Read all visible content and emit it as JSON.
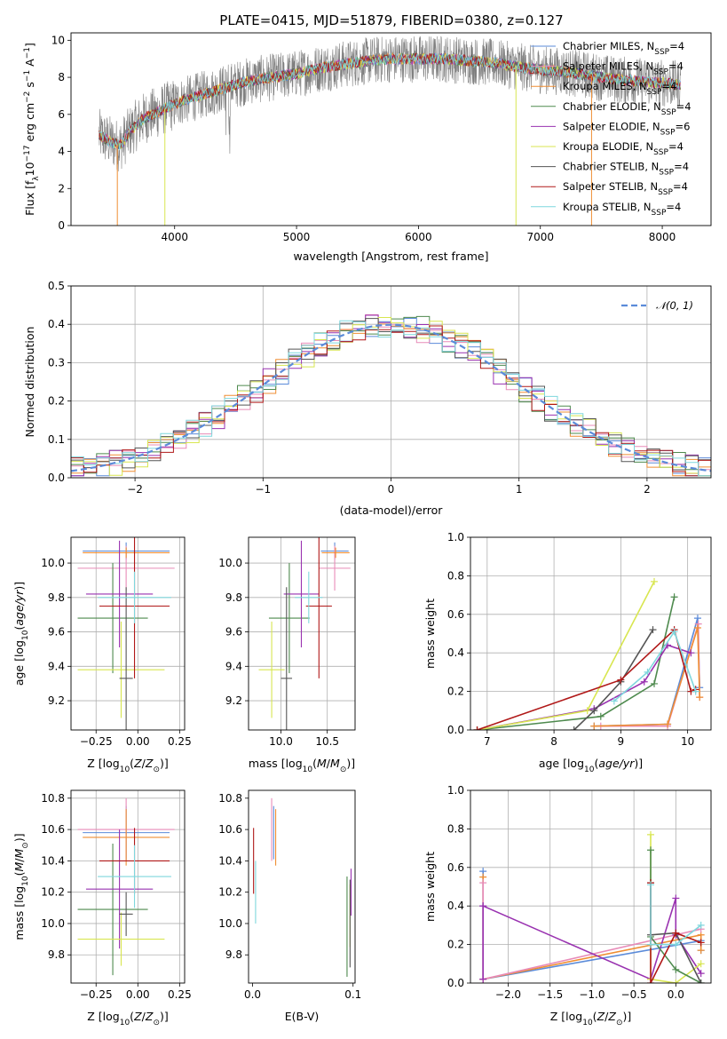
{
  "colors": {
    "chabrier_miles": "#5B8BD9",
    "salpeter_miles": "#E88BB8",
    "kroupa_miles": "#EF8E33",
    "chabrier_elodie": "#4E8A4E",
    "salpeter_elodie": "#9932B0",
    "kroupa_elodie": "#D8E650",
    "chabrier_stelib": "#555555",
    "salpeter_stelib": "#B01818",
    "kroupa_stelib": "#7FD7DD",
    "data": "#808080",
    "normal_curve": "#5B8BD9"
  },
  "chart_data": [
    {
      "id": "spectrum",
      "type": "line",
      "title": "PLATE=0415, MJD=51879, FIBERID=0380, z=0.127",
      "xlabel": "wavelength [Angstrom, rest frame]",
      "ylabel": "Flux [f_λ 10^-17 erg cm^-2 s^-1 A^-1]",
      "xlim": [
        3150,
        8400
      ],
      "ylim": [
        0,
        10.4
      ],
      "xticks": [
        4000,
        5000,
        6000,
        7000,
        8000
      ],
      "yticks": [
        0,
        2,
        4,
        6,
        8,
        10
      ],
      "legend_loc": "right",
      "series": [
        {
          "name": "Chabrier MILES, N_SSP=4",
          "color": "chabrier_miles"
        },
        {
          "name": "Salpeter MILES, N_SSP=4",
          "color": "salpeter_miles"
        },
        {
          "name": "Kroupa MILES, N_SSP=4",
          "color": "kroupa_miles"
        },
        {
          "name": "Chabrier ELODIE, N_SSP=4",
          "color": "chabrier_elodie"
        },
        {
          "name": "Salpeter ELODIE, N_SSP=6",
          "color": "salpeter_elodie"
        },
        {
          "name": "Kroupa ELODIE, N_SSP=4",
          "color": "kroupa_elodie"
        },
        {
          "name": "Chabrier STELIB, N_SSP=4",
          "color": "chabrier_stelib"
        },
        {
          "name": "Salpeter STELIB, N_SSP=4",
          "color": "salpeter_stelib"
        },
        {
          "name": "Kroupa STELIB, N_SSP=4",
          "color": "kroupa_stelib"
        }
      ],
      "continuum": [
        [
          3380,
          4.9
        ],
        [
          3450,
          4.6
        ],
        [
          3550,
          4.3
        ],
        [
          3650,
          5.2
        ],
        [
          3750,
          5.8
        ],
        [
          3850,
          6.1
        ],
        [
          3950,
          6.4
        ],
        [
          4050,
          6.7
        ],
        [
          4200,
          7.0
        ],
        [
          4400,
          7.4
        ],
        [
          4600,
          7.8
        ],
        [
          4800,
          8.0
        ],
        [
          5000,
          8.2
        ],
        [
          5200,
          8.5
        ],
        [
          5400,
          8.7
        ],
        [
          5600,
          8.9
        ],
        [
          5800,
          9.0
        ],
        [
          6000,
          9.0
        ],
        [
          6200,
          9.0
        ],
        [
          6400,
          8.9
        ],
        [
          6600,
          8.8
        ],
        [
          6800,
          8.6
        ],
        [
          7000,
          8.4
        ],
        [
          7200,
          8.3
        ],
        [
          7400,
          8.1
        ],
        [
          7600,
          7.9
        ],
        [
          7800,
          7.8
        ],
        [
          8000,
          7.7
        ],
        [
          8150,
          7.6
        ]
      ]
    },
    {
      "id": "residuals",
      "type": "line",
      "xlabel": "(data-model)/error",
      "ylabel": "Normed distribution",
      "xlim": [
        -2.5,
        2.5
      ],
      "ylim": [
        0,
        0.5
      ],
      "xticks": [
        -2,
        -1,
        0,
        1,
        2
      ],
      "xtick_labels": [
        "−2",
        "−1",
        "0",
        "1",
        "2"
      ],
      "yticks": [
        0.0,
        0.1,
        0.2,
        0.3,
        0.4,
        0.5
      ],
      "ytick_labels": [
        "0.0",
        "0.1",
        "0.2",
        "0.3",
        "0.4",
        "0.5"
      ],
      "grid": true,
      "legend": "𝒩(0, 1)",
      "legend_loc": "top-right",
      "bin_width": 0.1
    },
    {
      "id": "age_vs_Z",
      "type": "scatter",
      "xlabel": "Z [log10(Z/Z⊙)]",
      "ylabel": "age  [log10(age/yr)]",
      "xlim": [
        -0.4,
        0.28
      ],
      "ylim": [
        9.03,
        10.15
      ],
      "xticks": [
        -0.25,
        0.0,
        0.25
      ],
      "xtick_labels": [
        "−0.25",
        "0.00",
        "0.25"
      ],
      "yticks": [
        9.2,
        9.4,
        9.6,
        9.8,
        10.0
      ],
      "ytick_labels": [
        "9.2",
        "9.4",
        "9.6",
        "9.8",
        "10.0"
      ],
      "grid": true,
      "points": [
        {
          "c": "chabrier_miles",
          "x": -0.07,
          "xerr": 0.26,
          "y": 10.07,
          "yerr": 0.05
        },
        {
          "c": "salpeter_miles",
          "x": -0.07,
          "xerr": 0.29,
          "y": 9.97,
          "yerr": 0.13
        },
        {
          "c": "kroupa_miles",
          "x": -0.07,
          "xerr": 0.26,
          "y": 10.06,
          "yerr": 0.03
        },
        {
          "c": "chabrier_elodie",
          "x": -0.15,
          "xerr": 0.21,
          "y": 9.68,
          "yerr": 0.32
        },
        {
          "c": "salpeter_elodie",
          "x": -0.11,
          "xerr": 0.2,
          "y": 9.82,
          "yerr": 0.31
        },
        {
          "c": "kroupa_elodie",
          "x": -0.1,
          "xerr": 0.26,
          "y": 9.38,
          "yerr": 0.28
        },
        {
          "c": "chabrier_stelib",
          "x": -0.07,
          "xerr": 0.04,
          "y": 9.33,
          "yerr": 0.53
        },
        {
          "c": "salpeter_stelib",
          "x": -0.02,
          "xerr": 0.21,
          "y": 9.75,
          "yerr": 0.42
        },
        {
          "c": "kroupa_stelib",
          "x": -0.02,
          "xerr": 0.22,
          "y": 9.8,
          "yerr": 0.15
        }
      ]
    },
    {
      "id": "age_vs_mass",
      "type": "scatter",
      "xlabel": "mass [log10(M/M⊙)]",
      "xlim": [
        9.65,
        10.8
      ],
      "ylim": [
        9.03,
        10.15
      ],
      "xticks": [
        10.0,
        10.5
      ],
      "xtick_labels": [
        "10.0",
        "10.5"
      ],
      "yticks": [
        9.2,
        9.4,
        9.6,
        9.8,
        10.0
      ],
      "ytick_labels": [
        "9.2",
        "9.4",
        "9.6",
        "9.8",
        "10.0"
      ],
      "grid": true,
      "points": [
        {
          "c": "chabrier_miles",
          "x": 10.58,
          "xerr": 0.15,
          "y": 10.07,
          "yerr": 0.05
        },
        {
          "c": "salpeter_miles",
          "x": 10.58,
          "xerr": 0.17,
          "y": 9.97,
          "yerr": 0.13
        },
        {
          "c": "kroupa_miles",
          "x": 10.59,
          "xerr": 0.15,
          "y": 10.06,
          "yerr": 0.03
        },
        {
          "c": "chabrier_elodie",
          "x": 10.09,
          "xerr": 0.22,
          "y": 9.68,
          "yerr": 0.32
        },
        {
          "c": "salpeter_elodie",
          "x": 10.22,
          "xerr": 0.19,
          "y": 9.82,
          "yerr": 0.31
        },
        {
          "c": "kroupa_elodie",
          "x": 9.9,
          "xerr": 0.14,
          "y": 9.38,
          "yerr": 0.28
        },
        {
          "c": "chabrier_stelib",
          "x": 10.06,
          "xerr": 0.06,
          "y": 9.33,
          "yerr": 0.53
        },
        {
          "c": "salpeter_stelib",
          "x": 10.41,
          "xerr": 0.14,
          "y": 9.75,
          "yerr": 0.42
        },
        {
          "c": "kroupa_stelib",
          "x": 10.3,
          "xerr": 0.15,
          "y": 9.8,
          "yerr": 0.15
        }
      ]
    },
    {
      "id": "weight_vs_age",
      "type": "line",
      "xlabel": "age  [log10(age/yr)]",
      "ylabel": "mass weight",
      "xlim": [
        6.75,
        10.35
      ],
      "ylim": [
        0,
        1.0
      ],
      "xticks": [
        7,
        8,
        9,
        10
      ],
      "yticks": [
        0.0,
        0.2,
        0.4,
        0.6,
        0.8,
        1.0
      ],
      "ytick_labels": [
        "0.0",
        "0.2",
        "0.4",
        "0.6",
        "0.8",
        "1.0"
      ],
      "grid": true,
      "series": [
        {
          "c": "chabrier_miles",
          "pts": [
            [
              8.6,
              0.02
            ],
            [
              9.7,
              0.03
            ],
            [
              10.15,
              0.58
            ],
            [
              10.18,
              0.22
            ]
          ]
        },
        {
          "c": "salpeter_miles",
          "pts": [
            [
              8.7,
              0.02
            ],
            [
              9.7,
              0.02
            ],
            [
              10.16,
              0.55
            ],
            [
              10.18,
              0.17
            ]
          ]
        },
        {
          "c": "kroupa_miles",
          "pts": [
            [
              8.6,
              0.02
            ],
            [
              9.7,
              0.03
            ],
            [
              10.15,
              0.53
            ],
            [
              10.18,
              0.17
            ]
          ]
        },
        {
          "c": "chabrier_elodie",
          "pts": [
            [
              6.85,
              0.0
            ],
            [
              8.7,
              0.07
            ],
            [
              9.5,
              0.24
            ],
            [
              9.8,
              0.69
            ]
          ]
        },
        {
          "c": "salpeter_elodie",
          "pts": [
            [
              6.85,
              0.0
            ],
            [
              8.6,
              0.11
            ],
            [
              9.35,
              0.25
            ],
            [
              9.7,
              0.44
            ],
            [
              10.05,
              0.4
            ]
          ]
        },
        {
          "c": "kroupa_elodie",
          "pts": [
            [
              6.85,
              0.0
            ],
            [
              8.5,
              0.1
            ],
            [
              9.5,
              0.77
            ]
          ]
        },
        {
          "c": "chabrier_stelib",
          "pts": [
            [
              8.3,
              0.0
            ],
            [
              8.6,
              0.1
            ],
            [
              9.0,
              0.25
            ],
            [
              9.48,
              0.52
            ]
          ]
        },
        {
          "c": "salpeter_stelib",
          "pts": [
            [
              6.85,
              0.0
            ],
            [
              9.0,
              0.26
            ],
            [
              9.8,
              0.52
            ],
            [
              10.05,
              0.2
            ],
            [
              10.12,
              0.21
            ]
          ]
        },
        {
          "c": "kroupa_stelib",
          "pts": [
            [
              8.9,
              0.15
            ],
            [
              9.4,
              0.3
            ],
            [
              9.8,
              0.51
            ],
            [
              10.12,
              0.2
            ]
          ]
        }
      ]
    },
    {
      "id": "mass_vs_Z",
      "type": "scatter",
      "xlabel": "Z [log10(Z/Z⊙)]",
      "ylabel": "mass [log10(M/M⊙)]",
      "xlim": [
        -0.4,
        0.28
      ],
      "ylim": [
        9.62,
        10.85
      ],
      "xticks": [
        -0.25,
        0.0,
        0.25
      ],
      "xtick_labels": [
        "−0.25",
        "0.00",
        "0.25"
      ],
      "yticks": [
        9.8,
        10.0,
        10.2,
        10.4,
        10.6,
        10.8
      ],
      "ytick_labels": [
        "9.8",
        "10.0",
        "10.2",
        "10.4",
        "10.6",
        "10.8"
      ],
      "grid": true,
      "points": [
        {
          "c": "chabrier_miles",
          "x": -0.07,
          "xerr": 0.26,
          "y": 10.58,
          "yerr": 0.17
        },
        {
          "c": "salpeter_miles",
          "x": -0.07,
          "xerr": 0.29,
          "y": 10.6,
          "yerr": 0.2
        },
        {
          "c": "kroupa_miles",
          "x": -0.07,
          "xerr": 0.26,
          "y": 10.55,
          "yerr": 0.18
        },
        {
          "c": "chabrier_elodie",
          "x": -0.15,
          "xerr": 0.21,
          "y": 10.09,
          "yerr": 0.42
        },
        {
          "c": "salpeter_elodie",
          "x": -0.11,
          "xerr": 0.2,
          "y": 10.22,
          "yerr": 0.38
        },
        {
          "c": "kroupa_elodie",
          "x": -0.1,
          "xerr": 0.26,
          "y": 9.9,
          "yerr": 0.17
        },
        {
          "c": "chabrier_stelib",
          "x": -0.07,
          "xerr": 0.04,
          "y": 10.06,
          "yerr": 0.14
        },
        {
          "c": "salpeter_stelib",
          "x": -0.02,
          "xerr": 0.21,
          "y": 10.4,
          "yerr": 0.21
        },
        {
          "c": "kroupa_stelib",
          "x": -0.02,
          "xerr": 0.22,
          "y": 10.3,
          "yerr": 0.2
        }
      ]
    },
    {
      "id": "mass_vs_ebv",
      "type": "scatter",
      "xlabel": "E(B-V)",
      "xlim": [
        -0.004,
        0.102
      ],
      "ylim": [
        9.62,
        10.85
      ],
      "xticks": [
        0.0,
        0.1
      ],
      "xtick_labels": [
        "0.0",
        "0.1"
      ],
      "yticks": [
        9.8,
        10.0,
        10.2,
        10.4,
        10.6,
        10.8
      ],
      "ytick_labels": [
        "9.8",
        "10.0",
        "10.2",
        "10.4",
        "10.6",
        "10.8"
      ],
      "grid": false,
      "points": [
        {
          "c": "chabrier_miles",
          "x": 0.021,
          "y": 10.58,
          "yerr": 0.17
        },
        {
          "c": "salpeter_miles",
          "x": 0.019,
          "y": 10.6,
          "yerr": 0.2
        },
        {
          "c": "kroupa_miles",
          "x": 0.023,
          "y": 10.55,
          "yerr": 0.18
        },
        {
          "c": "chabrier_elodie",
          "x": 0.094,
          "y": 9.98,
          "yerr": 0.32
        },
        {
          "c": "salpeter_elodie",
          "x": 0.098,
          "y": 10.2,
          "yerr": 0.15
        },
        {
          "c": "kroupa_elodie",
          "x": 0.097,
          "y": 10.05,
          "yerr": 0.2
        },
        {
          "c": "chabrier_stelib",
          "x": 0.097,
          "y": 10.0,
          "yerr": 0.28
        },
        {
          "c": "salpeter_stelib",
          "x": 0.001,
          "y": 10.4,
          "yerr": 0.21
        },
        {
          "c": "kroupa_stelib",
          "x": 0.003,
          "y": 10.2,
          "yerr": 0.2
        }
      ]
    },
    {
      "id": "weight_vs_Z",
      "type": "line",
      "xlabel": "Z [log10(Z/Z⊙)]",
      "ylabel": "mass weight",
      "xlim": [
        -2.45,
        0.42
      ],
      "ylim": [
        0,
        1.0
      ],
      "xticks": [
        -2.0,
        -1.5,
        -1.0,
        -0.5,
        0.0
      ],
      "xtick_labels": [
        "−2.0",
        "−1.5",
        "−1.0",
        "−0.5",
        "0.0"
      ],
      "yticks": [
        0.0,
        0.2,
        0.4,
        0.6,
        0.8,
        1.0
      ],
      "ytick_labels": [
        "0.0",
        "0.2",
        "0.4",
        "0.6",
        "0.8",
        "1.0"
      ],
      "grid": true,
      "series": [
        {
          "c": "chabrier_miles",
          "pts": [
            [
              -2.3,
              0.58
            ],
            [
              -2.3,
              0.02
            ],
            [
              0.3,
              0.22
            ],
            [
              0.3,
              0.17
            ]
          ]
        },
        {
          "c": "kroupa_miles",
          "pts": [
            [
              -2.3,
              0.55
            ],
            [
              -2.3,
              0.02
            ],
            [
              0.3,
              0.25
            ],
            [
              0.3,
              0.17
            ]
          ]
        },
        {
          "c": "salpeter_miles",
          "pts": [
            [
              -2.3,
              0.52
            ],
            [
              -2.3,
              0.02
            ],
            [
              0.3,
              0.28
            ]
          ]
        },
        {
          "c": "salpeter_elodie",
          "pts": [
            [
              -2.3,
              0.4
            ],
            [
              -2.3,
              0.02
            ],
            [
              -2.3,
              0.4
            ],
            [
              -0.3,
              0.02
            ],
            [
              0.0,
              0.44
            ],
            [
              0.0,
              0.25
            ],
            [
              0.3,
              0.05
            ]
          ]
        },
        {
          "c": "kroupa_elodie",
          "pts": [
            [
              -0.3,
              0.77
            ],
            [
              -0.3,
              0.02
            ],
            [
              0.0,
              0.0
            ],
            [
              0.3,
              0.1
            ]
          ]
        },
        {
          "c": "chabrier_elodie",
          "pts": [
            [
              -0.3,
              0.69
            ],
            [
              -0.3,
              0.24
            ],
            [
              0.0,
              0.07
            ],
            [
              0.3,
              0.0
            ]
          ]
        },
        {
          "c": "chabrier_stelib",
          "pts": [
            [
              -0.3,
              0.52
            ],
            [
              -0.3,
              0.25
            ],
            [
              0.0,
              0.26
            ],
            [
              0.3,
              0.0
            ]
          ]
        },
        {
          "c": "salpeter_stelib",
          "pts": [
            [
              -0.3,
              0.52
            ],
            [
              -0.3,
              0.0
            ],
            [
              0.0,
              0.26
            ],
            [
              0.3,
              0.21
            ]
          ]
        },
        {
          "c": "kroupa_stelib",
          "pts": [
            [
              -0.3,
              0.51
            ],
            [
              -0.3,
              0.2
            ],
            [
              0.0,
              0.2
            ],
            [
              0.3,
              0.3
            ]
          ]
        }
      ]
    }
  ]
}
